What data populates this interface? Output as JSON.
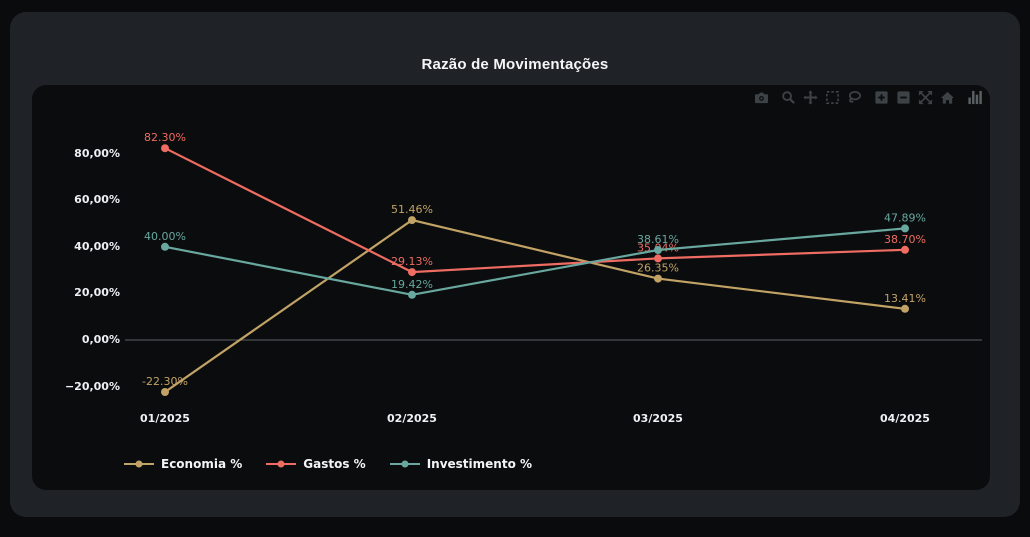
{
  "window": {
    "background": "#0a0b0c"
  },
  "card": {
    "title": "Razão de Movimentações",
    "background": "#1f2227"
  },
  "panel": {
    "background": "#0b0c0e"
  },
  "modebar": {
    "icon_color": "#3d4246",
    "logo_color": "#5a5f64",
    "groups": [
      [
        "camera-icon"
      ],
      [
        "zoom-icon",
        "pan-icon",
        "box-select-icon",
        "lasso-select-icon"
      ],
      [
        "zoom-in-icon",
        "zoom-out-icon",
        "autoscale-icon",
        "reset-axes-icon"
      ],
      [
        "plotly-logo-icon"
      ]
    ]
  },
  "chart_data": {
    "type": "line",
    "title": "Razão de Movimentações",
    "categories": [
      "01/2025",
      "02/2025",
      "03/2025",
      "04/2025"
    ],
    "series": [
      {
        "name": "Economia %",
        "color": "#c2a366",
        "values": [
          -22.3,
          51.46,
          26.35,
          13.41
        ],
        "point_labels": [
          "-22.30%",
          "51.46%",
          "26.35%",
          "13.41%"
        ]
      },
      {
        "name": "Gastos %",
        "color": "#ee6c62",
        "values": [
          82.3,
          29.13,
          35.04,
          38.7
        ],
        "point_labels": [
          "82.30%",
          "29.13%",
          "35.04%",
          "38.70%"
        ]
      },
      {
        "name": "Investimento %",
        "color": "#68a89f",
        "values": [
          40.0,
          19.42,
          38.61,
          47.89
        ],
        "point_labels": [
          "40.00%",
          "19.42%",
          "38.61%",
          "47.89%"
        ]
      }
    ],
    "y_axis": {
      "tick_values": [
        80,
        60,
        40,
        20,
        0,
        -20
      ],
      "tick_labels": [
        "80,00%",
        "60,00%",
        "40,00%",
        "20,00%",
        "0,00%",
        "−20,00%"
      ],
      "color": "#eef1f4"
    },
    "x_axis": {
      "tick_labels": [
        "01/2025",
        "02/2025",
        "03/2025",
        "04/2025"
      ],
      "color": "#eef1f4"
    },
    "ylim": [
      -32,
      97
    ],
    "grid": false,
    "zero_line": true,
    "zero_line_color": "#5c6166",
    "legend_position": "bottom-left",
    "legend_entries": [
      "Economia %",
      "Gastos %",
      "Investimento %"
    ]
  }
}
